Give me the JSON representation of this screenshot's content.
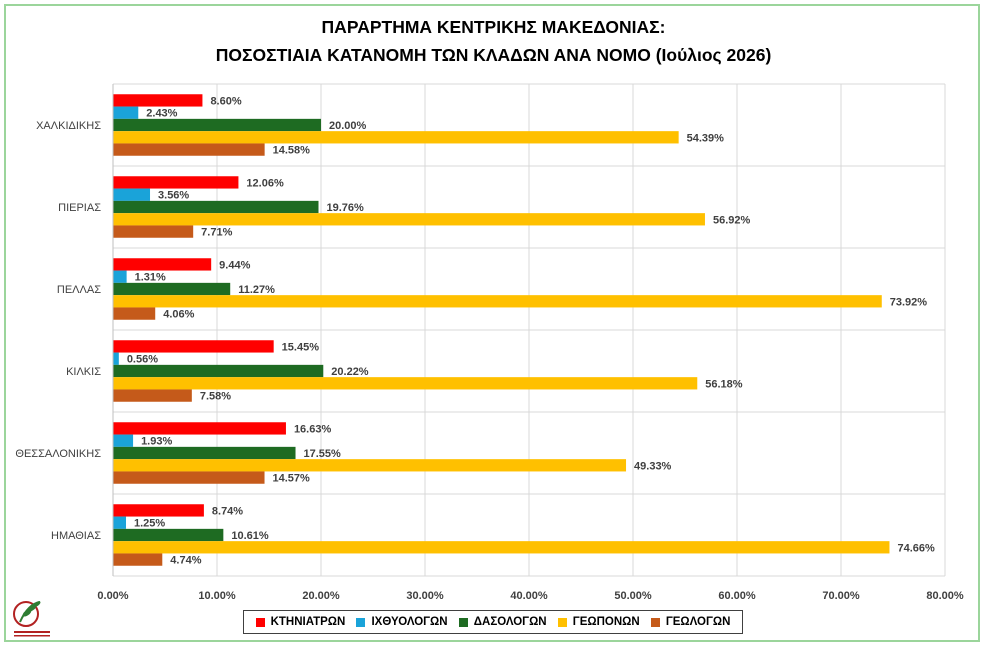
{
  "title_line1": "ΠΑΡΑΡΤΗΜΑ ΚΕΝΤΡΙΚΗΣ ΜΑΚΕΔΟΝΙΑΣ:",
  "title_line2": "ΠΟΣΟΣΤΙΑΙΑ ΚΑΤΑΝΟΜΗ ΤΩΝ ΚΛΑΔΩΝ ΑΝΑ ΝΟΜΟ (Ιούλιος 2026)",
  "logo_text": "ΓΕΩΤΕΧΝΙΚΟ ΕΠΙΜΕΛΗΤΗΡΙΟ ΕΛΛΑΔΑΣ",
  "chart_data": {
    "type": "bar",
    "orientation": "horizontal",
    "categories": [
      "ΧΑΛΚΙΔΙΚΗΣ",
      "ΠΙΕΡΙΑΣ",
      "ΠΕΛΛΑΣ",
      "ΚΙΛΚΙΣ",
      "ΘΕΣΣΑΛΟΝΙΚΗΣ",
      "ΗΜΑΘΙΑΣ"
    ],
    "series": [
      {
        "name": "ΚΤΗΝΙΑΤΡΩΝ",
        "color": "#ff0000",
        "values": [
          8.6,
          12.06,
          9.44,
          15.45,
          16.63,
          8.74
        ]
      },
      {
        "name": "ΙΧΘΥΟΛΟΓΩΝ",
        "color": "#1aa3d9",
        "values": [
          2.43,
          3.56,
          1.31,
          0.56,
          1.93,
          1.25
        ]
      },
      {
        "name": "ΔΑΣΟΛΟΓΩΝ",
        "color": "#1e6b22",
        "values": [
          20.0,
          19.76,
          11.27,
          20.22,
          17.55,
          10.61
        ]
      },
      {
        "name": "ΓΕΩΠΟΝΩΝ",
        "color": "#ffc000",
        "values": [
          54.39,
          56.92,
          73.92,
          56.18,
          49.33,
          74.66
        ]
      },
      {
        "name": "ΓΕΩΛΟΓΩΝ",
        "color": "#c55a1a",
        "values": [
          14.58,
          7.71,
          4.06,
          7.58,
          14.57,
          4.74
        ]
      }
    ],
    "data_labels": [
      [
        "8.60%",
        "2.43%",
        "20.00%",
        "54.39%",
        "14.58%"
      ],
      [
        "12.06%",
        "3.56%",
        "19.76%",
        "56.92%",
        "7.71%"
      ],
      [
        "9.44%",
        "1.31%",
        "11.27%",
        "73.92%",
        "4.06%"
      ],
      [
        "15.45%",
        "0.56%",
        "20.22%",
        "56.18%",
        "7.58%"
      ],
      [
        "16.63%",
        "1.93%",
        "17.55%",
        "49.33%",
        "14.57%"
      ],
      [
        "8.74%",
        "1.25%",
        "10.61%",
        "74.66%",
        "4.74%"
      ]
    ],
    "x_ticks": [
      "0.00%",
      "10.00%",
      "20.00%",
      "30.00%",
      "40.00%",
      "50.00%",
      "60.00%",
      "70.00%",
      "80.00%"
    ],
    "xlim": [
      0,
      80
    ],
    "grid": true,
    "legend_position": "bottom"
  }
}
